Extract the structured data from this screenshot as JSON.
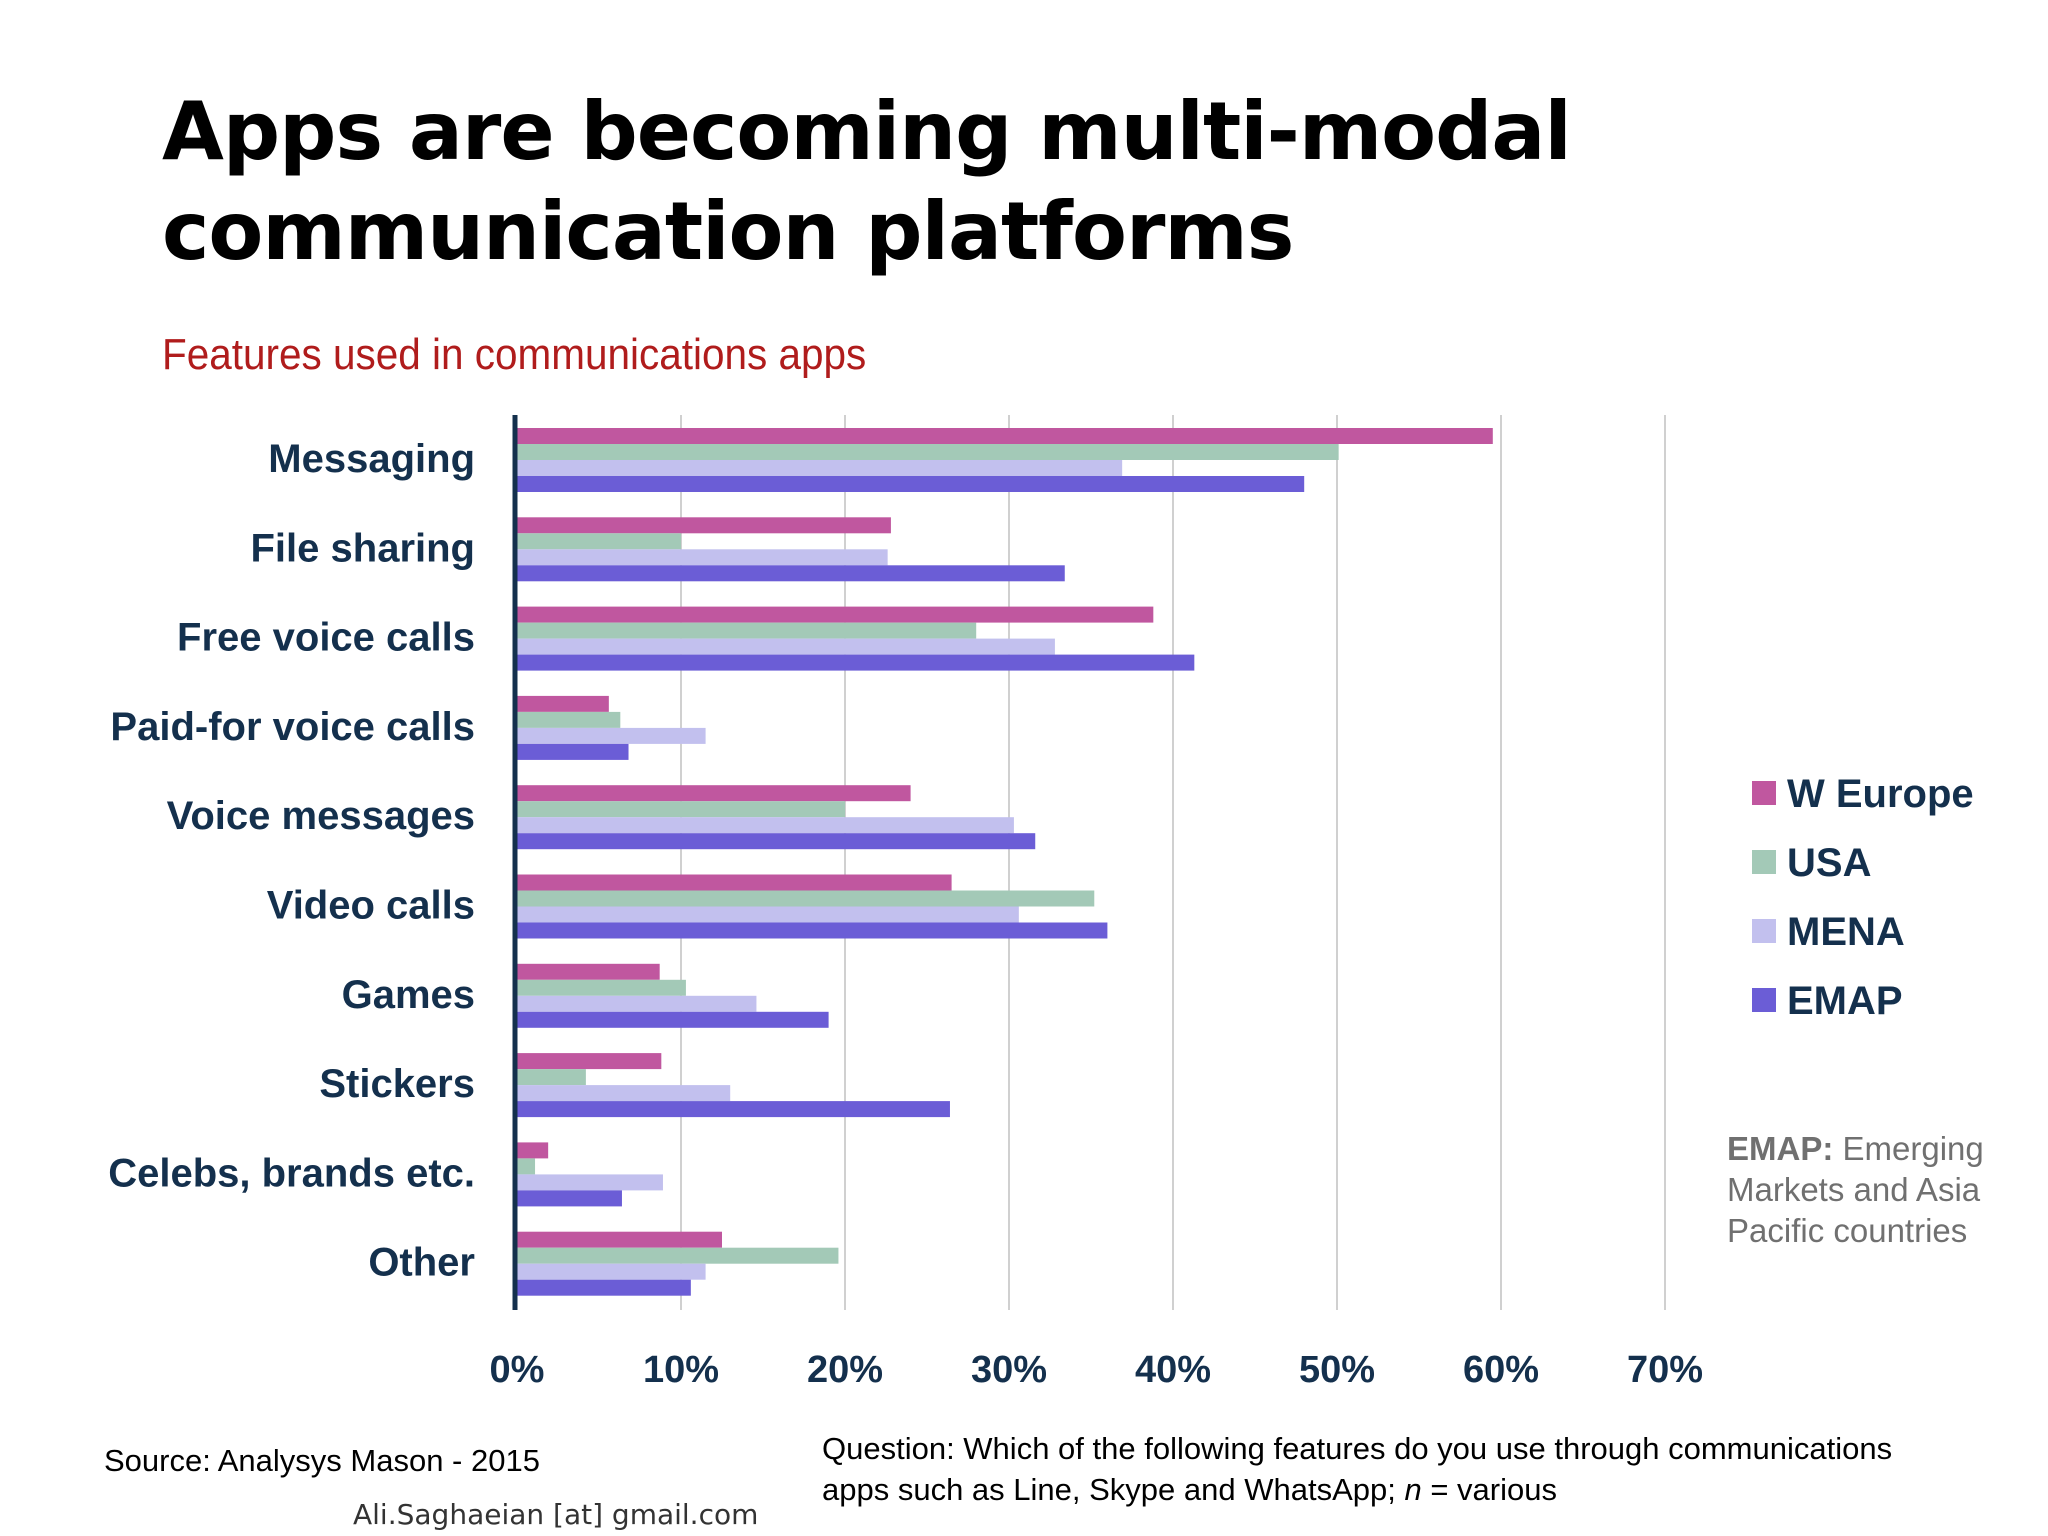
{
  "slide": {
    "title_line1": "Apps are becoming multi-modal",
    "title_line2": "communication platforms",
    "emap_note_label": "EMAP:",
    "emap_note_text": " Emerging Markets and Asia Pacific countries",
    "source": "Source: Analysys Mason - 2015",
    "question_prefix": "Question: Which of the following features do you use through communications apps such as Line, Skype and WhatsApp; ",
    "question_n": "n",
    "question_suffix": " = various",
    "credit": "Ali.Saghaeian [at] gmail.com"
  },
  "chart_data": {
    "type": "bar",
    "orientation": "horizontal",
    "title": "Features used in communications apps",
    "categories": [
      "Messaging",
      "File sharing",
      "Free voice calls",
      "Paid-for voice calls",
      "Voice messages",
      "Video calls",
      "Games",
      "Stickers",
      "Celebs, brands etc.",
      "Other"
    ],
    "series": [
      {
        "name": "W Europe",
        "color": "#c0579f",
        "values": [
          59.5,
          22.8,
          38.8,
          5.6,
          24.0,
          26.5,
          8.7,
          8.8,
          1.9,
          12.5
        ]
      },
      {
        "name": "USA",
        "color": "#a3c9b7",
        "values": [
          50.1,
          10.0,
          28.0,
          6.3,
          20.0,
          35.2,
          10.3,
          4.2,
          1.1,
          19.6
        ]
      },
      {
        "name": "MENA",
        "color": "#c2c0ee",
        "values": [
          36.9,
          22.6,
          32.8,
          11.5,
          30.3,
          30.6,
          14.6,
          13.0,
          8.9,
          11.5
        ]
      },
      {
        "name": "EMAP",
        "color": "#6b5dd6",
        "values": [
          48.0,
          33.4,
          41.3,
          6.8,
          31.6,
          36.0,
          19.0,
          26.4,
          6.4,
          10.6
        ]
      }
    ],
    "xlim": [
      0,
      70
    ],
    "xticks": [
      "0%",
      "10%",
      "20%",
      "30%",
      "40%",
      "50%",
      "60%",
      "70%"
    ],
    "grid": true,
    "legend": "right"
  }
}
